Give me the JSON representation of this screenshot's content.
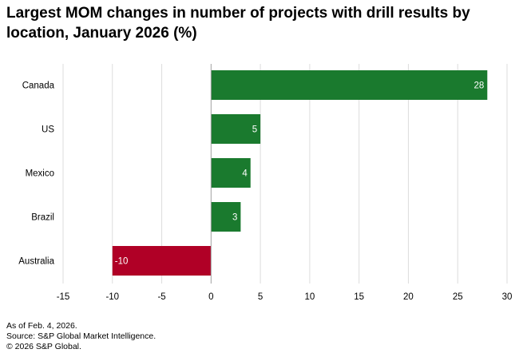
{
  "chart_data": {
    "type": "bar",
    "orientation": "horizontal",
    "title": "Largest MOM changes in number of projects with drill results by location, January 2026 (%)",
    "categories": [
      "Canada",
      "US",
      "Mexico",
      "Brazil",
      "Australia"
    ],
    "values": [
      28,
      5,
      4,
      3,
      -10
    ],
    "data_labels": [
      "28",
      "5",
      "4",
      "3",
      "-10"
    ],
    "xlim": [
      -15,
      30
    ],
    "xticks": [
      "-15",
      "-10",
      "-5",
      "0",
      "5",
      "10",
      "15",
      "20",
      "25",
      "30"
    ],
    "grid": "vertical",
    "colors": {
      "positive": "#1a7a2e",
      "negative": "#b00026"
    }
  },
  "footnotes": [
    "As of Feb. 4, 2026.",
    "Source: S&P Global Market Intelligence.",
    "© 2026 S&P Global."
  ]
}
